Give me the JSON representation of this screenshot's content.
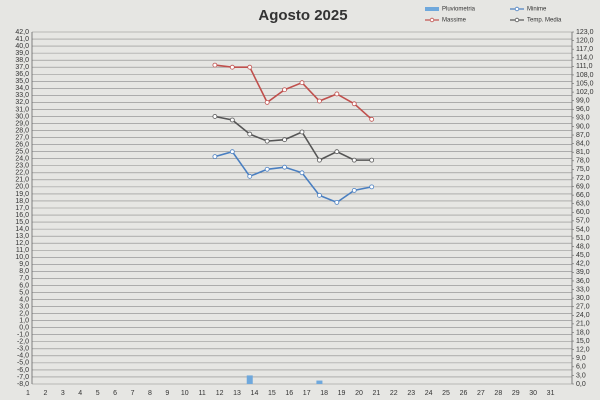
{
  "chart_data": {
    "type": "line",
    "title": "Agosto 2025",
    "categories": [
      "1",
      "2",
      "3",
      "4",
      "5",
      "6",
      "7",
      "8",
      "9",
      "10",
      "11",
      "12",
      "13",
      "14",
      "15",
      "16",
      "17",
      "18",
      "19",
      "20",
      "21",
      "22",
      "23",
      "24",
      "25",
      "26",
      "27",
      "28",
      "29",
      "30",
      "31"
    ],
    "series": [
      {
        "name": "Pluviometria",
        "type": "bar",
        "axis": "y2",
        "color": "#6fa8dc",
        "values": [
          null,
          null,
          null,
          null,
          null,
          null,
          null,
          null,
          null,
          null,
          null,
          null,
          3.0,
          null,
          null,
          null,
          1.2,
          null,
          null,
          null,
          null,
          null,
          null,
          null,
          null,
          null,
          null,
          null,
          null,
          null,
          null
        ]
      },
      {
        "name": "Minime",
        "type": "line",
        "color": "#4a7fc1",
        "values": [
          null,
          null,
          null,
          null,
          null,
          null,
          null,
          null,
          null,
          null,
          24.3,
          25.0,
          21.5,
          22.5,
          22.8,
          22.0,
          18.8,
          17.8,
          19.5,
          20.0,
          null,
          null,
          null,
          null,
          null,
          null,
          null,
          null,
          null,
          null,
          null
        ]
      },
      {
        "name": "Massime",
        "type": "line",
        "color": "#c0504d",
        "values": [
          null,
          null,
          null,
          null,
          null,
          null,
          null,
          null,
          null,
          null,
          37.3,
          37.0,
          37.0,
          32.0,
          33.8,
          34.8,
          32.2,
          33.2,
          31.8,
          29.6,
          null,
          null,
          null,
          null,
          null,
          null,
          null,
          null,
          null,
          null,
          null
        ]
      },
      {
        "name": "Temp. Media",
        "type": "line",
        "color": "#555555",
        "values": [
          null,
          null,
          null,
          null,
          null,
          null,
          null,
          null,
          null,
          null,
          30.0,
          29.5,
          27.5,
          26.5,
          26.7,
          27.8,
          23.8,
          25.0,
          23.8,
          23.8,
          null,
          null,
          null,
          null,
          null,
          null,
          null,
          null,
          null,
          null,
          null
        ]
      }
    ],
    "ylim": [
      -8,
      42
    ],
    "yticks": [
      {
        "value": -8,
        "label": "-8,0"
      },
      {
        "value": -7,
        "label": "-7,0"
      },
      {
        "value": -6,
        "label": "-6,0"
      },
      {
        "value": -5,
        "label": "-5,0"
      },
      {
        "value": -4,
        "label": "-4,0"
      },
      {
        "value": -3,
        "label": "-3,0"
      },
      {
        "value": -2,
        "label": "-2,0"
      },
      {
        "value": -1,
        "label": "-1,0"
      },
      {
        "value": 0,
        "label": "0,0"
      },
      {
        "value": 1,
        "label": "1,0"
      },
      {
        "value": 2,
        "label": "2,0"
      },
      {
        "value": 3,
        "label": "3,0"
      },
      {
        "value": 4,
        "label": "4,0"
      },
      {
        "value": 5,
        "label": "5,0"
      },
      {
        "value": 6,
        "label": "6,0"
      },
      {
        "value": 7,
        "label": "7,0"
      },
      {
        "value": 8,
        "label": "8,0"
      },
      {
        "value": 9,
        "label": "9,0"
      },
      {
        "value": 10,
        "label": "10,0"
      },
      {
        "value": 11,
        "label": "11,0"
      },
      {
        "value": 12,
        "label": "12,0"
      },
      {
        "value": 13,
        "label": "13,0"
      },
      {
        "value": 14,
        "label": "14,0"
      },
      {
        "value": 15,
        "label": "15,0"
      },
      {
        "value": 16,
        "label": "16,0"
      },
      {
        "value": 17,
        "label": "17,0"
      },
      {
        "value": 18,
        "label": "18,0"
      },
      {
        "value": 19,
        "label": "19,0"
      },
      {
        "value": 20,
        "label": "20,0"
      },
      {
        "value": 21,
        "label": "21,0"
      },
      {
        "value": 22,
        "label": "22,0"
      },
      {
        "value": 23,
        "label": "23,0"
      },
      {
        "value": 24,
        "label": "24,0"
      },
      {
        "value": 25,
        "label": "25,0"
      },
      {
        "value": 26,
        "label": "26,0"
      },
      {
        "value": 27,
        "label": "27,0"
      },
      {
        "value": 28,
        "label": "28,0"
      },
      {
        "value": 29,
        "label": "29,0"
      },
      {
        "value": 30,
        "label": "30,0"
      },
      {
        "value": 31,
        "label": "31,0"
      },
      {
        "value": 32,
        "label": "32,0"
      },
      {
        "value": 33,
        "label": "33,0"
      },
      {
        "value": 34,
        "label": "34,0"
      },
      {
        "value": 35,
        "label": "35,0"
      },
      {
        "value": 36,
        "label": "36,0"
      },
      {
        "value": 37,
        "label": "37,0"
      },
      {
        "value": 38,
        "label": "38,0"
      },
      {
        "value": 39,
        "label": "39,0"
      },
      {
        "value": 40,
        "label": "40,0"
      },
      {
        "value": 41,
        "label": "41,0"
      },
      {
        "value": 42,
        "label": "42,0"
      }
    ],
    "y2lim": [
      0,
      123
    ],
    "y2ticks": [
      {
        "value": 0,
        "label": "0,0"
      },
      {
        "value": 3,
        "label": "3,0"
      },
      {
        "value": 6,
        "label": "6,0"
      },
      {
        "value": 9,
        "label": "9,0"
      },
      {
        "value": 12,
        "label": "12,0"
      },
      {
        "value": 15,
        "label": "15,0"
      },
      {
        "value": 18,
        "label": "18,0"
      },
      {
        "value": 21,
        "label": "21,0"
      },
      {
        "value": 24,
        "label": "24,0"
      },
      {
        "value": 27,
        "label": "27,0"
      },
      {
        "value": 30,
        "label": "30,0"
      },
      {
        "value": 33,
        "label": "33,0"
      },
      {
        "value": 36,
        "label": "36,0"
      },
      {
        "value": 39,
        "label": "39,0"
      },
      {
        "value": 42,
        "label": "42,0"
      },
      {
        "value": 45,
        "label": "45,0"
      },
      {
        "value": 48,
        "label": "48,0"
      },
      {
        "value": 51,
        "label": "51,0"
      },
      {
        "value": 54,
        "label": "54,0"
      },
      {
        "value": 57,
        "label": "57,0"
      },
      {
        "value": 60,
        "label": "60,0"
      },
      {
        "value": 63,
        "label": "63,0"
      },
      {
        "value": 66,
        "label": "66,0"
      },
      {
        "value": 69,
        "label": "69,0"
      },
      {
        "value": 72,
        "label": "72,0"
      },
      {
        "value": 75,
        "label": "75,0"
      },
      {
        "value": 78,
        "label": "78,0"
      },
      {
        "value": 81,
        "label": "81,0"
      },
      {
        "value": 84,
        "label": "84,0"
      },
      {
        "value": 87,
        "label": "87,0"
      },
      {
        "value": 90,
        "label": "90,0"
      },
      {
        "value": 93,
        "label": "93,0"
      },
      {
        "value": 96,
        "label": "96,0"
      },
      {
        "value": 99,
        "label": "99,0"
      },
      {
        "value": 102,
        "label": "102,0"
      },
      {
        "value": 105,
        "label": "105,0"
      },
      {
        "value": 108,
        "label": "108,0"
      },
      {
        "value": 111,
        "label": "111,0"
      },
      {
        "value": 114,
        "label": "114,0"
      },
      {
        "value": 117,
        "label": "117,0"
      },
      {
        "value": 120,
        "label": "120,0"
      },
      {
        "value": 123,
        "label": "123,0"
      }
    ],
    "grid": true
  }
}
